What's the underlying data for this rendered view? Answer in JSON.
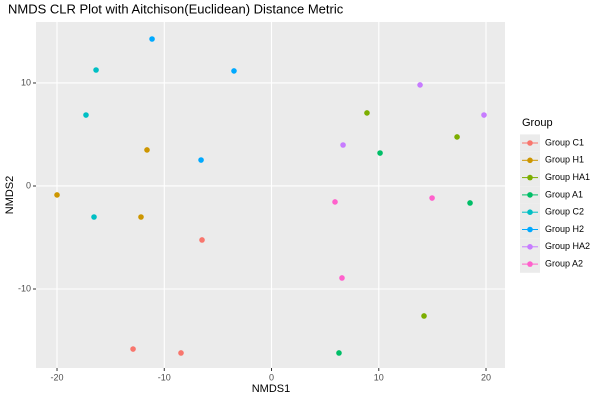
{
  "chart_data": {
    "type": "scatter",
    "title": "NMDS CLR Plot with Aitchison(Euclidean) Distance Metric",
    "x_label": "NMDS1",
    "y_label": "NMDS2",
    "legend_title": "Group",
    "xlim": [
      -21.96,
      21.77
    ],
    "ylim": [
      -17.67,
      15.92
    ],
    "xticks": [
      -20,
      -10,
      0,
      10,
      20
    ],
    "yticks": [
      -10,
      0,
      10
    ],
    "grid": true,
    "legend": "right",
    "series": [
      {
        "name": "Group C1",
        "color": "#F8766D",
        "x": [
          -6.48,
          -12.91,
          -8.44
        ],
        "values": [
          -5.24,
          -15.83,
          -16.21
        ]
      },
      {
        "name": "Group H1",
        "color": "#CD9600",
        "x": [
          -11.61,
          -20.0,
          -12.17
        ],
        "values": [
          3.5,
          -0.87,
          -3.01
        ]
      },
      {
        "name": "Group HA1",
        "color": "#7CAE00",
        "x": [
          8.9,
          17.3,
          14.22
        ],
        "values": [
          7.09,
          4.76,
          -12.62
        ]
      },
      {
        "name": "Group A1",
        "color": "#00BE67",
        "x": [
          10.12,
          18.51,
          6.29
        ],
        "values": [
          3.2,
          -1.65,
          -16.21
        ]
      },
      {
        "name": "Group C2",
        "color": "#00BFC4",
        "x": [
          -16.36,
          -17.3,
          -16.55
        ],
        "values": [
          11.26,
          6.89,
          -3.01
        ]
      },
      {
        "name": "Group H2",
        "color": "#00A9FF",
        "x": [
          -11.14,
          -3.5,
          -6.57
        ],
        "values": [
          14.27,
          11.17,
          2.52
        ]
      },
      {
        "name": "Group HA2",
        "color": "#C77CFF",
        "x": [
          13.85,
          19.81,
          6.67
        ],
        "values": [
          9.81,
          6.89,
          3.98
        ]
      },
      {
        "name": "Group A2",
        "color": "#FF61CC",
        "x": [
          5.92,
          14.97,
          6.57
        ],
        "values": [
          -1.55,
          -1.17,
          -8.93
        ]
      }
    ]
  }
}
